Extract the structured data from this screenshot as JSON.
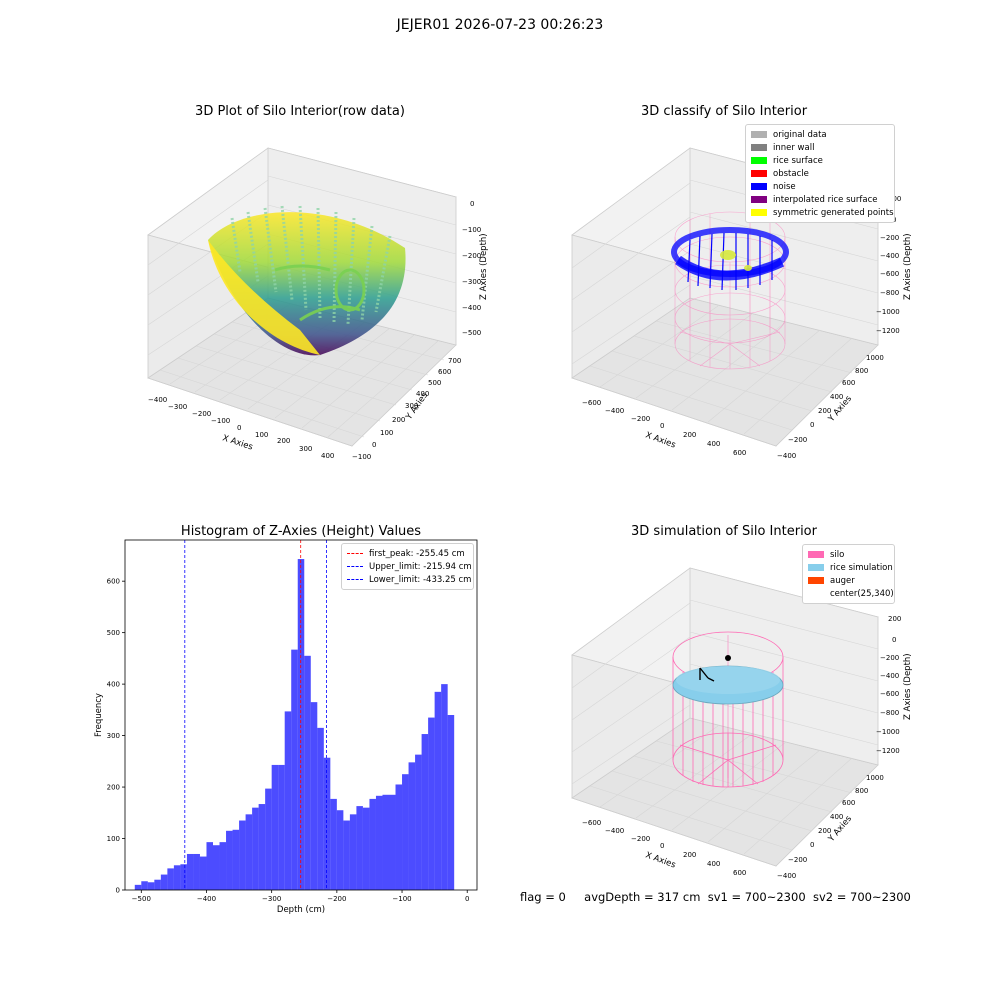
{
  "suptitle": "JEJER01 2026-07-23 00:26:23",
  "plot1": {
    "title": "3D Plot of Silo Interior(row data)",
    "xlabel": "X Axies",
    "ylabel": "Y Axies",
    "zlabel": "Z Axies (Depth)",
    "x_ticks": [
      "−400",
      "−300",
      "−200",
      "−100",
      "0",
      "100",
      "200",
      "300",
      "400"
    ],
    "y_ticks": [
      "−100",
      "0",
      "100",
      "200",
      "300",
      "400",
      "500",
      "600",
      "700"
    ],
    "z_ticks": [
      "0",
      "−100",
      "−200",
      "−300",
      "−400",
      "−500"
    ]
  },
  "plot2": {
    "title": "3D classify of Silo Interior",
    "xlabel": "X Axies",
    "ylabel": "Y Axies",
    "zlabel": "Z Axies (Depth)",
    "x_ticks": [
      "−600",
      "−400",
      "−200",
      "0",
      "200",
      "400",
      "600"
    ],
    "y_ticks": [
      "−400",
      "−200",
      "0",
      "200",
      "400",
      "600",
      "800",
      "1000"
    ],
    "z_ticks": [
      "200",
      "0",
      "−200",
      "−400",
      "−600",
      "−800",
      "−1000",
      "−1200"
    ],
    "legend": [
      {
        "label": "original data",
        "color": "#b0b0b0"
      },
      {
        "label": "inner wall",
        "color": "#808080"
      },
      {
        "label": "rice surface",
        "color": "#00ff00"
      },
      {
        "label": "obstacle",
        "color": "#ff0000"
      },
      {
        "label": "noise",
        "color": "#0000ff"
      },
      {
        "label": "interpolated rice surface",
        "color": "#800080"
      },
      {
        "label": "symmetric generated points",
        "color": "#ffff00"
      }
    ]
  },
  "plot4": {
    "title": "3D simulation of Silo Interior",
    "xlabel": "X Axies",
    "ylabel": "Y Axies",
    "zlabel": "Z Axies (Depth)",
    "x_ticks": [
      "−600",
      "−400",
      "−200",
      "0",
      "200",
      "400",
      "600"
    ],
    "y_ticks": [
      "−400",
      "−200",
      "0",
      "200",
      "400",
      "600",
      "800",
      "1000"
    ],
    "z_ticks": [
      "200",
      "0",
      "−200",
      "−400",
      "−600",
      "−800",
      "−1000",
      "−1200"
    ],
    "legend": [
      {
        "label": "silo",
        "color": "#ff69b4"
      },
      {
        "label": "rice simulation",
        "color": "#87ceeb"
      },
      {
        "label": "auger",
        "color": "#ff4500"
      },
      {
        "label": "center(25,340)",
        "color": ""
      }
    ]
  },
  "status": {
    "flag": "flag = 0",
    "avg": "avgDepth = 317 cm",
    "sv1": "sv1 = 700~2300",
    "sv2": "sv2 = 700~2300"
  },
  "chart_data": {
    "type": "bar",
    "title": "Histogram of Z-Axies (Height) Values",
    "xlabel": "Depth (cm)",
    "ylabel": "Frequency",
    "xlim": [
      -525,
      15
    ],
    "ylim": [
      0,
      680
    ],
    "x_ticks": [
      -500,
      -400,
      -300,
      -200,
      -100,
      0
    ],
    "y_ticks": [
      0,
      100,
      200,
      300,
      400,
      500,
      600
    ],
    "bin_start": -510,
    "bin_width": 10,
    "values": [
      10,
      17,
      15,
      20,
      30,
      42,
      48,
      50,
      70,
      70,
      65,
      93,
      87,
      93,
      115,
      117,
      135,
      147,
      160,
      167,
      197,
      243,
      243,
      347,
      467,
      643,
      455,
      365,
      315,
      257,
      177,
      155,
      135,
      147,
      163,
      160,
      177,
      183,
      185,
      185,
      205,
      225,
      248,
      263,
      303,
      335,
      385,
      400,
      340
    ],
    "color": "#0000ff",
    "lines": [
      {
        "label": "first_peak: -255.45 cm",
        "x": -255.45,
        "color": "#ff0000"
      },
      {
        "label": "Upper_limit: -215.94 cm",
        "x": -215.94,
        "color": "#0000ff"
      },
      {
        "label": "Lower_limit: -433.25 cm",
        "x": -433.25,
        "color": "#0000ff"
      }
    ],
    "legend_position": "top-right"
  }
}
